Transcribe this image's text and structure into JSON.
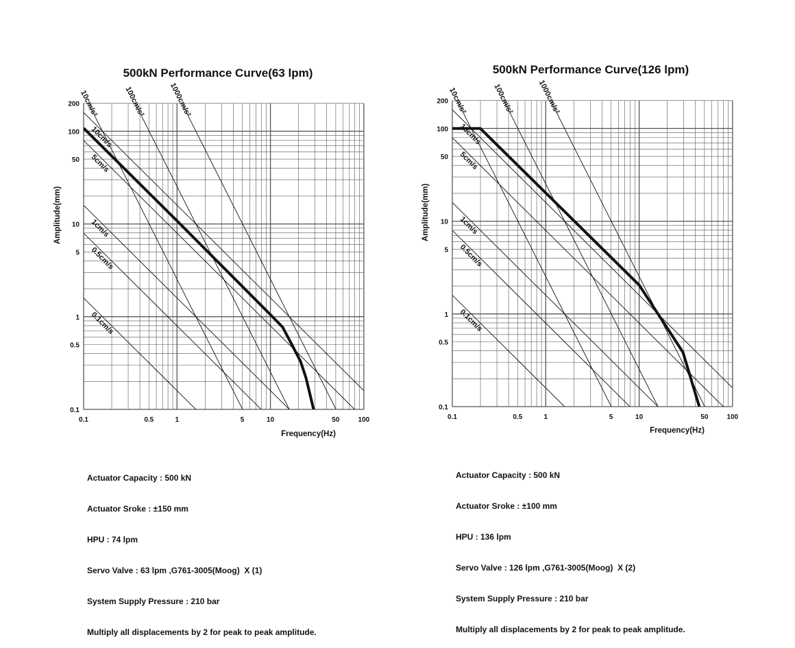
{
  "chart_data": [
    {
      "type": "line",
      "title": "500kN Performance Curve(63 lpm)",
      "xlabel": "Frequency(Hz)",
      "ylabel": "Amplitude(mm)",
      "x_scale": "log",
      "y_scale": "log",
      "xlim": [
        0.1,
        100
      ],
      "ylim": [
        0.1,
        200
      ],
      "grid": true,
      "x_ticks": [
        "0.1",
        "0.5",
        "1",
        "5",
        "10",
        "50",
        "100"
      ],
      "y_ticks": [
        "0.1",
        "0.5",
        "1",
        "5",
        "10",
        "50",
        "100",
        "200"
      ],
      "velocity_lines_cm_s": [
        10,
        5,
        1,
        0.5,
        0.1
      ],
      "velocity_labels": [
        "10cm/s",
        "5cm/s",
        "1cm/s",
        "0.5cm/s",
        "0.1cm/s"
      ],
      "acceleration_lines_cm_s2": [
        10,
        100,
        1000
      ],
      "acceleration_labels": [
        "10cm/s²",
        "100cm/s²",
        "1000cm/s²"
      ],
      "performance_curve": [
        [
          0.1,
          108
        ],
        [
          1,
          10.8
        ],
        [
          10,
          1.05
        ],
        [
          13.5,
          0.77
        ],
        [
          17.5,
          0.47
        ],
        [
          21,
          0.33
        ],
        [
          24,
          0.22
        ],
        [
          29,
          0.1
        ]
      ],
      "specs": [
        "Actuator Capacity : 500 kN",
        "Actuator Sroke : ±150 mm",
        "HPU : 74 lpm",
        "Servo Valve : 63 lpm ,G761-3005(Moog)  X (1)",
        "System Supply Pressure : 210 bar",
        "Multiply all displacements by 2 for peak to peak amplitude."
      ]
    },
    {
      "type": "line",
      "title": "500kN Performance Curve(126 lpm)",
      "xlabel": "Frequency(Hz)",
      "ylabel": "Amplitude(mm)",
      "x_scale": "log",
      "y_scale": "log",
      "xlim": [
        0.1,
        100
      ],
      "ylim": [
        0.1,
        200
      ],
      "grid": true,
      "x_ticks": [
        "0.1",
        "0.5",
        "1",
        "5",
        "10",
        "50",
        "100"
      ],
      "y_ticks": [
        "0.1",
        "0.5",
        "1",
        "5",
        "10",
        "50",
        "100",
        "200"
      ],
      "velocity_lines_cm_s": [
        10,
        5,
        1,
        0.5,
        0.1
      ],
      "velocity_labels": [
        "10cm/s",
        "5cm/s",
        "1cm/s",
        "0.5cm/s",
        "0.1cm/s"
      ],
      "acceleration_lines_cm_s2": [
        10,
        100,
        1000
      ],
      "acceleration_labels": [
        "10cm/s²",
        "100cm/s²",
        "1000cm/s²"
      ],
      "performance_curve": [
        [
          0.1,
          100
        ],
        [
          0.2,
          100
        ],
        [
          10,
          2.05
        ],
        [
          29.5,
          0.385
        ],
        [
          44,
          0.1
        ]
      ],
      "specs": [
        "Actuator Capacity : 500 kN",
        "Actuator Sroke : ±100 mm",
        "HPU : 136 lpm",
        "Servo Valve : 126 lpm ,G761-3005(Moog)  X (2)",
        "System Supply Pressure : 210 bar",
        "Multiply all displacements by 2 for peak to peak amplitude."
      ]
    }
  ]
}
